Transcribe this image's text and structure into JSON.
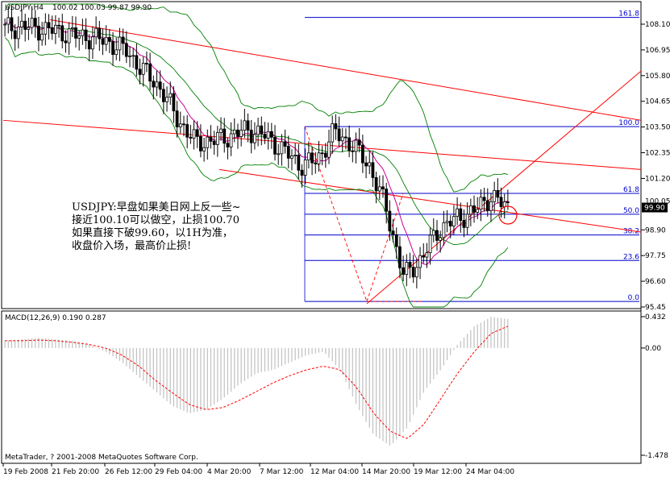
{
  "header": {
    "symbol": "USDJPY,H4",
    "ohlc": "100.02 100.03 99.87 99.90"
  },
  "indicator": {
    "label": "MACD(12,26,9) 0.190 0.287"
  },
  "copyright": "MetaTrader, ? 2001-2008 MetaQuotes Software Corp.",
  "annotation": {
    "lines": [
      "USDJPY:早盘如果美日网上反一些~",
      "接近100.10可以做空，止损100.70",
      "如果直接下破99.60，以1H为准，",
      "收盘价入场，最高价止损!"
    ]
  },
  "colors": {
    "background": "#ffffff",
    "bullish_candle": "#000000",
    "bollinger": "#008000",
    "moving_average": "#cc0099",
    "trendline": "#ff0000",
    "fibonacci": "#0000cc",
    "macd_histogram": "#c0c0c0",
    "macd_signal": "#ff0000",
    "current_price_tag": "#000000"
  },
  "icons": {
    "target_marker": "red-circle"
  },
  "chart_data": [
    {
      "type": "candlestick",
      "timeframe": "H4",
      "ylim": [
        95.45,
        108.8
      ],
      "y_ticks": [
        "108.10",
        "106.95",
        "105.80",
        "104.65",
        "103.50",
        "102.35",
        "101.20",
        "98.90",
        "97.75",
        "96.60",
        "95.45"
      ],
      "current_price": "99.90",
      "hidden_tick": "100.05",
      "x_ticks": [
        "19 Feb 2008",
        "21 Feb 20:00",
        "26 Feb 12:00",
        "29 Feb 04:00",
        "4 Mar 20:00",
        "7 Mar 12:00",
        "12 Mar 04:00",
        "14 Mar 20:00",
        "19 Mar 12:00",
        "24 Mar 04:00"
      ],
      "close_series": [
        107.9,
        108.0,
        107.9,
        107.8,
        107.6,
        107.5,
        107.3,
        106.9,
        106.0,
        105.2,
        103.8,
        102.8,
        102.9,
        103.1,
        103.4,
        103.1,
        102.5,
        101.8,
        102.0,
        103.3,
        102.7,
        101.8,
        99.8,
        96.8,
        97.6,
        98.9,
        99.4,
        99.7,
        100.4,
        99.9
      ],
      "fibonacci_levels": [
        {
          "label": "161.8",
          "value": 108.4
        },
        {
          "label": "100.0",
          "value": 103.52
        },
        {
          "label": "61.8",
          "value": 100.53
        },
        {
          "label": "50.0",
          "value": 99.6
        },
        {
          "label": "38.2",
          "value": 98.67
        },
        {
          "label": "23.6",
          "value": 97.53
        },
        {
          "label": "0.0",
          "value": 95.7
        }
      ]
    },
    {
      "type": "bar",
      "name": "MACD(12,26,9)",
      "main_value": 0.19,
      "signal_value": 0.287,
      "ylim": [
        -1.478,
        0.432
      ],
      "y_ticks": [
        "0.432",
        "0.00",
        "-1.478"
      ],
      "histogram": [
        0.1,
        0.12,
        0.14,
        0.12,
        0.1,
        0.05,
        -0.05,
        -0.2,
        -0.4,
        -0.6,
        -0.8,
        -0.9,
        -0.85,
        -0.7,
        -0.5,
        -0.35,
        -0.3,
        -0.2,
        -0.1,
        -0.05,
        -0.3,
        -0.8,
        -1.2,
        -1.35,
        -1.1,
        -0.6,
        -0.3,
        0.05,
        0.3,
        0.43,
        0.4
      ],
      "signal": [
        0.1,
        0.1,
        0.11,
        0.1,
        0.08,
        0.05,
        0.0,
        -0.1,
        -0.25,
        -0.45,
        -0.62,
        -0.78,
        -0.85,
        -0.82,
        -0.72,
        -0.6,
        -0.48,
        -0.38,
        -0.3,
        -0.25,
        -0.3,
        -0.55,
        -0.9,
        -1.15,
        -1.25,
        -1.05,
        -0.7,
        -0.35,
        -0.05,
        0.2,
        0.3
      ]
    }
  ]
}
